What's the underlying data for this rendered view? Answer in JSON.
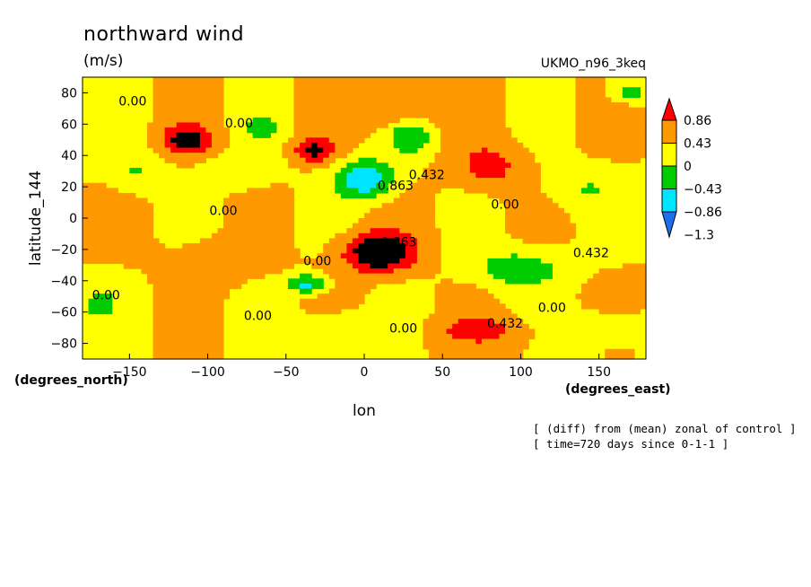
{
  "chart_data": {
    "type": "heatmap",
    "title": "northward wind",
    "units": "(m/s)",
    "dataset": "UKMO_n96_3keq",
    "xlabel": "lon",
    "ylabel": "latitude_144",
    "x_unit_label": "(degrees_east)",
    "y_unit_label": "(degrees_north)",
    "xlim": [
      -180,
      180
    ],
    "ylim": [
      -90,
      90
    ],
    "x_ticks": [
      -150,
      -100,
      -50,
      0,
      50,
      100,
      150
    ],
    "y_ticks": [
      80,
      60,
      40,
      20,
      0,
      -20,
      -40,
      -60,
      -80
    ],
    "colorbar": {
      "levels": [
        -1.3,
        -0.86,
        -0.43,
        0,
        0.43,
        0.86
      ],
      "labels": [
        "0.86",
        "0.43",
        "0",
        "−0.43",
        "−0.86",
        "−1.3"
      ],
      "colors": [
        "#1e6ef0",
        "#00e5ff",
        "#00cc00",
        "#ffff00",
        "#ff9900",
        "#ff0000"
      ]
    },
    "contour_labels": [
      "0.00",
      "0.863",
      "0.432"
    ],
    "notes": [
      "[ (diff) from (mean) zonal of control ]",
      "[ time=720 days since 0-1-1 ]"
    ],
    "features": [
      {
        "lon": -113,
        "lat": 50,
        "amp": 1.1,
        "width_lon": 15,
        "width_lat": 9
      },
      {
        "lon": -32,
        "lat": 43,
        "amp": 1.0,
        "width_lon": 13,
        "width_lat": 7
      },
      {
        "lon": 10,
        "lat": -22,
        "amp": 1.5,
        "width_lon": 22,
        "width_lat": 12
      },
      {
        "lon": 80,
        "lat": 33,
        "amp": 0.6,
        "width_lon": 22,
        "width_lat": 14
      },
      {
        "lon": 75,
        "lat": -72,
        "amp": 0.6,
        "width_lon": 28,
        "width_lat": 9
      },
      {
        "lon": 15,
        "lat": 68,
        "amp": 0.45,
        "width_lon": 30,
        "width_lat": 12
      },
      {
        "lon": -95,
        "lat": -28,
        "amp": 0.3,
        "width_lon": 30,
        "width_lat": 14
      },
      {
        "lon": 0,
        "lat": 25,
        "amp": -1.3,
        "width_lon": 18,
        "width_lat": 12
      },
      {
        "lon": 30,
        "lat": 52,
        "amp": -0.8,
        "width_lon": 14,
        "width_lat": 10
      },
      {
        "lon": -37,
        "lat": -42,
        "amp": -1.0,
        "width_lon": 12,
        "width_lat": 6
      },
      {
        "lon": -65,
        "lat": 58,
        "amp": -0.6,
        "width_lon": 12,
        "width_lat": 6
      },
      {
        "lon": 98,
        "lat": -32,
        "amp": -0.7,
        "width_lon": 30,
        "width_lat": 12
      },
      {
        "lon": 170,
        "lat": 80,
        "amp": -0.6,
        "width_lon": 12,
        "width_lat": 6
      },
      {
        "lon": -170,
        "lat": -55,
        "amp": -0.55,
        "width_lon": 12,
        "width_lat": 10
      },
      {
        "lon": -145,
        "lat": 30,
        "amp": -0.45,
        "width_lon": 18,
        "width_lat": 12
      },
      {
        "lon": -80,
        "lat": 30,
        "amp": -0.4,
        "width_lon": 22,
        "width_lat": 10
      },
      {
        "lon": 140,
        "lat": 20,
        "amp": -0.4,
        "width_lon": 26,
        "width_lat": 14
      },
      {
        "lon": -20,
        "lat": -70,
        "amp": -0.5,
        "width_lon": 24,
        "width_lat": 10
      },
      {
        "lon": 150,
        "lat": -70,
        "amp": -0.45,
        "width_lon": 25,
        "width_lat": 10
      }
    ]
  }
}
